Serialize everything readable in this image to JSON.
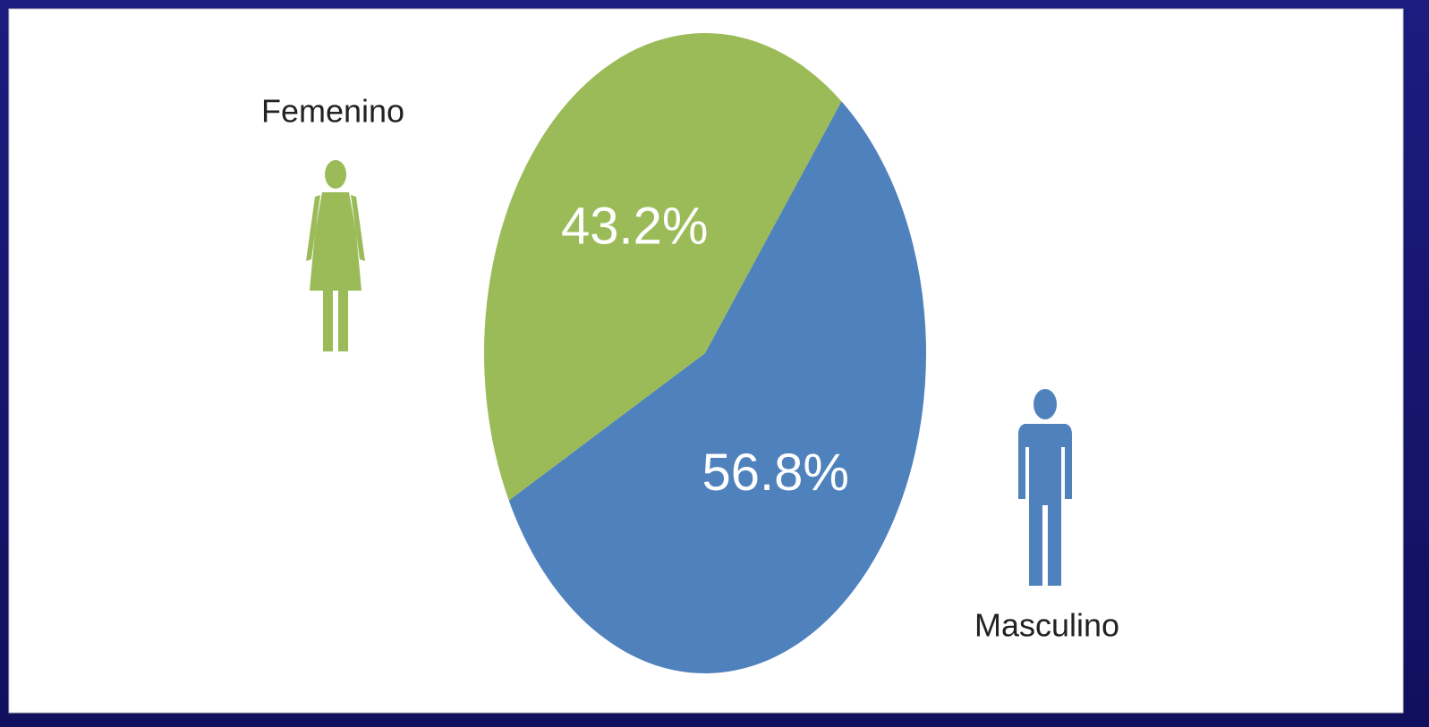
{
  "chart_data": {
    "type": "pie",
    "categories": [
      "Femenino",
      "Masculino"
    ],
    "values": [
      43.2,
      56.8
    ],
    "value_labels": [
      "43.2%",
      "56.8%"
    ],
    "colors": [
      "#9bbb59",
      "#4f81bd"
    ]
  }
}
